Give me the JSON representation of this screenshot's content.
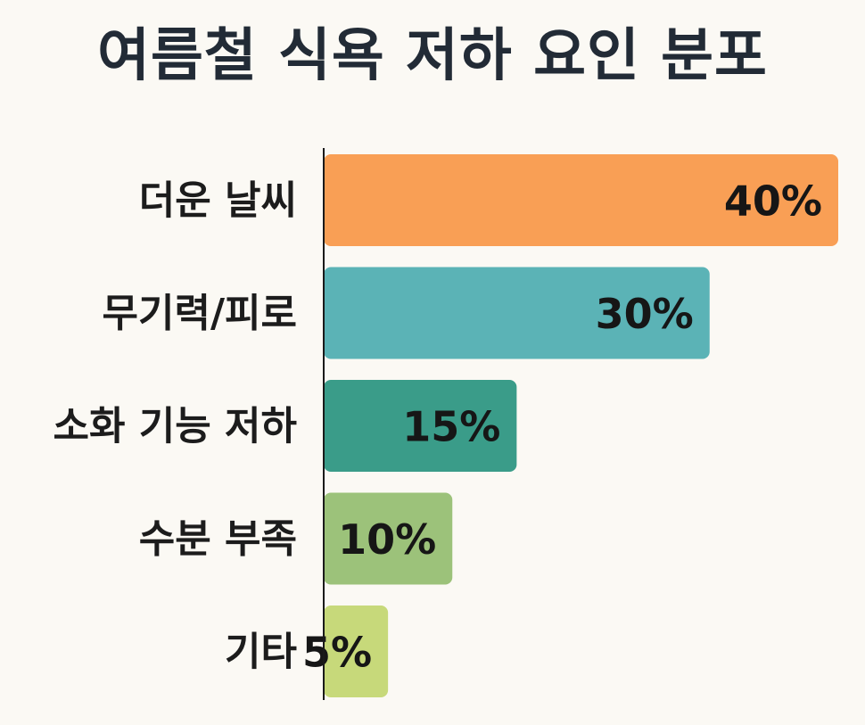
{
  "chart_data": {
    "type": "bar",
    "orientation": "horizontal",
    "title": "여름철 식욕 저하 요인 분포",
    "categories": [
      "더운 날씨",
      "무기력/피로",
      "소화 기능 저하",
      "수분 부족",
      "기타"
    ],
    "values": [
      40,
      30,
      15,
      10,
      5
    ],
    "value_labels": [
      "40%",
      "30%",
      "15%",
      "10%",
      "5%"
    ],
    "colors": [
      "#f99f55",
      "#5bb3b6",
      "#3a9c89",
      "#9cc27a",
      "#c7d97a"
    ],
    "xlim": [
      0,
      40
    ],
    "grid": false,
    "legend": "none"
  }
}
